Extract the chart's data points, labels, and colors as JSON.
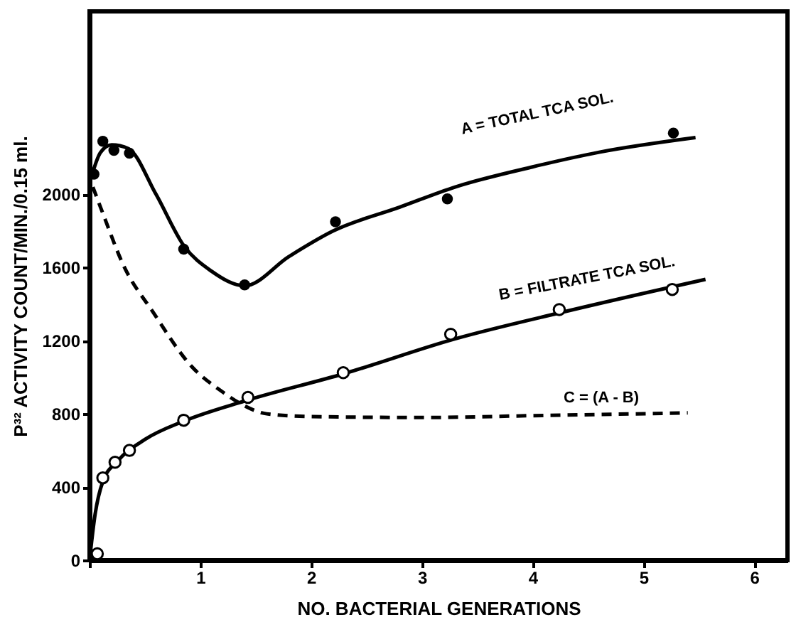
{
  "chart_data": {
    "type": "line",
    "xlabel": "NO. BACTERIAL GENERATIONS",
    "ylabel": "P³² ACTIVITY COUNT/MIN./0.15 ml.",
    "xlim": [
      0,
      6.3
    ],
    "ylim": [
      0,
      3000
    ],
    "xticks": [
      {
        "value": 0,
        "label": null
      },
      1,
      2,
      3,
      4,
      5,
      6
    ],
    "yticks": [
      0,
      400,
      800,
      1200,
      1600,
      2000
    ],
    "grid": false,
    "series": [
      {
        "type": "scatter",
        "color": "#000000",
        "marker": "circle",
        "x": [
          0.04,
          0.12,
          0.22,
          0.36,
          0.85,
          1.4,
          2.22,
          3.23,
          5.27
        ],
        "values": [
          2110,
          2290,
          2240,
          2225,
          1700,
          1505,
          1850,
          1975,
          2335
        ]
      },
      {
        "color": "#000000",
        "line_style": "solid",
        "x": [
          0,
          0.1,
          0.2,
          0.35,
          0.6,
          0.85,
          1.1,
          1.4,
          1.8,
          2.2,
          2.8,
          3.3,
          4,
          4.6,
          5.47
        ],
        "values": [
          2060,
          2230,
          2270,
          2250,
          2000,
          1720,
          1580,
          1500,
          1660,
          1800,
          1930,
          2040,
          2150,
          2230,
          2310
        ]
      },
      {
        "type": "scatter",
        "color": "#000000",
        "marker": "circle",
        "x": [
          0.07,
          0.12,
          0.23,
          0.36,
          0.85,
          1.43,
          2.29,
          3.26,
          4.24,
          5.26
        ],
        "values": [
          35,
          450,
          535,
          600,
          765,
          890,
          1025,
          1235,
          1370,
          1480
        ]
      },
      {
        "color": "#000000",
        "line_style": "solid",
        "x": [
          0,
          0.05,
          0.12,
          0.25,
          0.5,
          0.85,
          1.4,
          2.3,
          3.3,
          4.3,
          5.56
        ],
        "values": [
          0,
          250,
          430,
          540,
          660,
          760,
          870,
          1020,
          1210,
          1360,
          1535
        ]
      },
      {
        "color": "#000000",
        "line_style": "dashed",
        "x": [
          0.03,
          0.13,
          0.3,
          0.58,
          0.92,
          1.2,
          1.38,
          1.6,
          2,
          3,
          4,
          5.4
        ],
        "values": [
          2040,
          1880,
          1620,
          1350,
          1060,
          920,
          850,
          800,
          785,
          780,
          790,
          805
        ]
      }
    ],
    "annotations": [
      "A = TOTAL TCA SOL.",
      "B = FILTRATE TCA SOL.",
      "C = (A - B)"
    ]
  }
}
